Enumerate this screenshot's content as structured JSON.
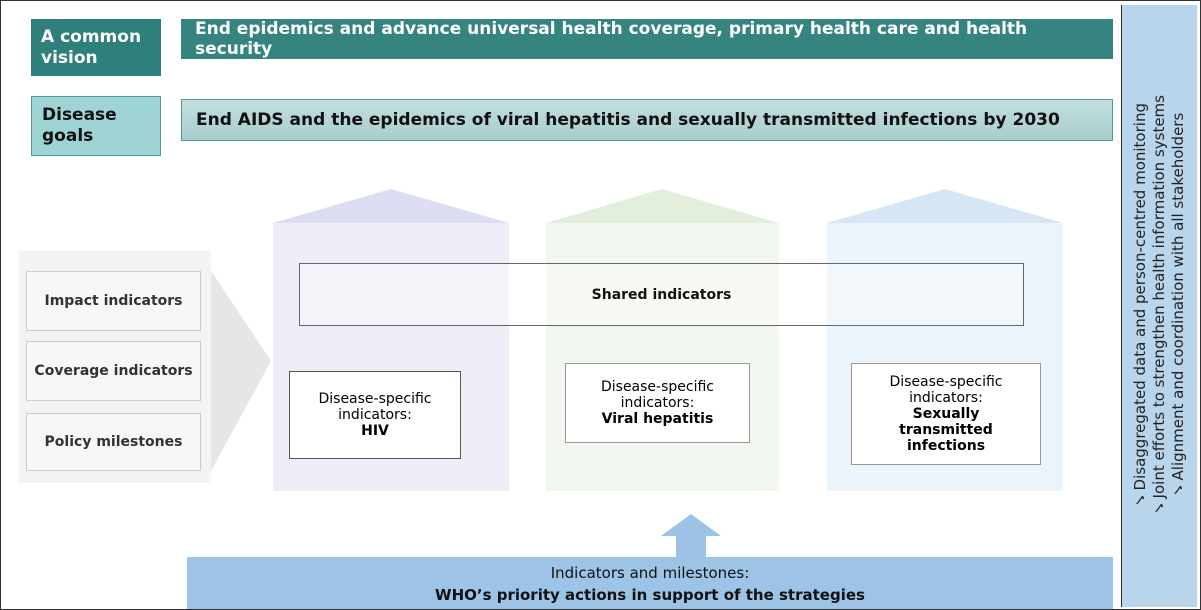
{
  "vision": {
    "label": "A common vision",
    "text": "End epidemics and advance universal health coverage, primary health care and health security"
  },
  "goals": {
    "label": "Disease goals",
    "text": "End AIDS and the epidemics of viral hepatitis and sexually transmitted infections by 2030"
  },
  "indicator_types": [
    "Impact indicators",
    "Coverage indicators",
    "Policy milestones"
  ],
  "shared": "Shared indicators",
  "columns": [
    {
      "prefix": "Disease-specific indicators:",
      "name": "HIV"
    },
    {
      "prefix": "Disease-specific indicators:",
      "name": "Viral hepatitis"
    },
    {
      "prefix": "Disease-specific indicators:",
      "name": "Sexually transmitted infections"
    }
  ],
  "bottom": {
    "line1": "Indicators and milestones:",
    "line2": "WHO’s priority actions in support of the strategies"
  },
  "side": [
    "✓Disaggregated data and person-centred monitoring",
    "✓Joint efforts to strengthen health information systems",
    "✓Alignment and coordination with all stakeholders"
  ]
}
